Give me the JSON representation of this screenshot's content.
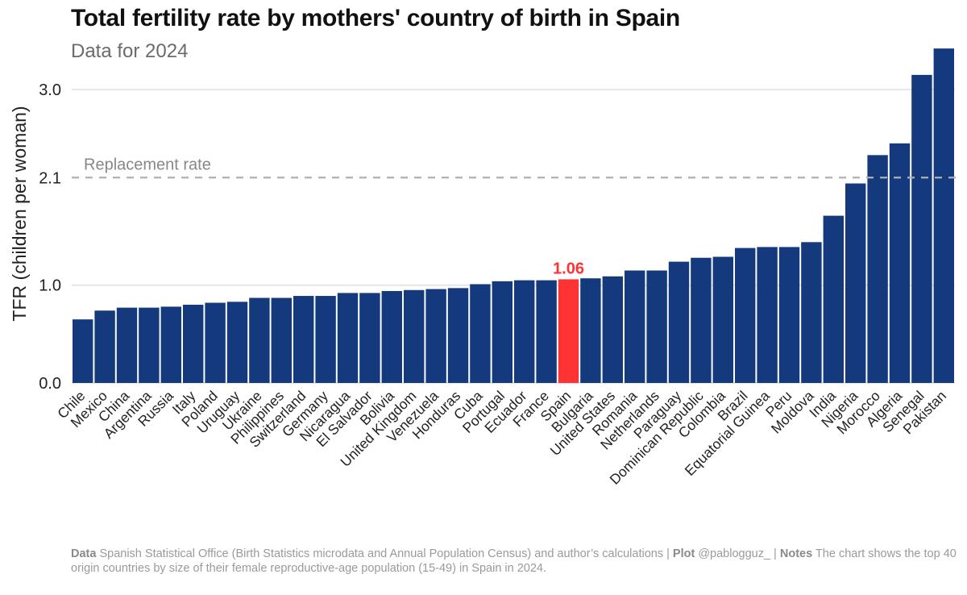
{
  "title": "Total fertility rate by mothers' country of birth in Spain",
  "subtitle": "Data for 2024",
  "caption": {
    "data_label": "Data",
    "data_text": "Spanish Statistical Office (Birth Statistics microdata and Annual Population Census) and author’s calculations |",
    "plot_label": "Plot",
    "plot_text": "@pablogguz_ |",
    "notes_label": "Notes",
    "notes_text": "The chart shows the top 40 origin countries by size of their female reproductive-age population (15-49) in Spain in 2024."
  },
  "chart_data": {
    "type": "bar",
    "title": "Total fertility rate by mothers' country of birth in Spain",
    "subtitle": "Data for 2024",
    "xlabel": "",
    "ylabel": "TFR (children per woman)",
    "ylim": [
      0,
      3.45
    ],
    "yticks": [
      0.0,
      1.0,
      2.1,
      3.0
    ],
    "ytick_labels": [
      "0.0",
      "1.0",
      "2.1",
      "3.0"
    ],
    "grid": "horizontal",
    "bar_color": "#14397d",
    "highlight_color": "#ff3333",
    "highlight": {
      "category": "Spain",
      "label": "1.06"
    },
    "reference_line": {
      "value": 2.1,
      "label": "Replacement rate",
      "style": "dashed",
      "color": "#b0b0b0"
    },
    "categories": [
      "Chile",
      "Mexico",
      "China",
      "Argentina",
      "Russia",
      "Italy",
      "Poland",
      "Uruguay",
      "Ukraine",
      "Philippines",
      "Switzerland",
      "Germany",
      "Nicaragua",
      "El Salvador",
      "Bolivia",
      "United Kingdom",
      "Venezuela",
      "Honduras",
      "Cuba",
      "Portugal",
      "Ecuador",
      "France",
      "Spain",
      "Bulgaria",
      "United States",
      "Romania",
      "Netherlands",
      "Paraguay",
      "Dominican Republic",
      "Colombia",
      "Brazil",
      "Equatorial Guinea",
      "Peru",
      "Moldova",
      "India",
      "Nigeria",
      "Morocco",
      "Algeria",
      "Senegal",
      "Pakistan"
    ],
    "values": [
      0.65,
      0.74,
      0.77,
      0.77,
      0.78,
      0.8,
      0.82,
      0.83,
      0.87,
      0.87,
      0.89,
      0.89,
      0.92,
      0.92,
      0.94,
      0.95,
      0.96,
      0.97,
      1.01,
      1.04,
      1.05,
      1.05,
      1.06,
      1.07,
      1.09,
      1.15,
      1.15,
      1.24,
      1.28,
      1.29,
      1.38,
      1.39,
      1.39,
      1.44,
      1.71,
      2.04,
      2.33,
      2.45,
      3.15,
      3.42
    ]
  }
}
